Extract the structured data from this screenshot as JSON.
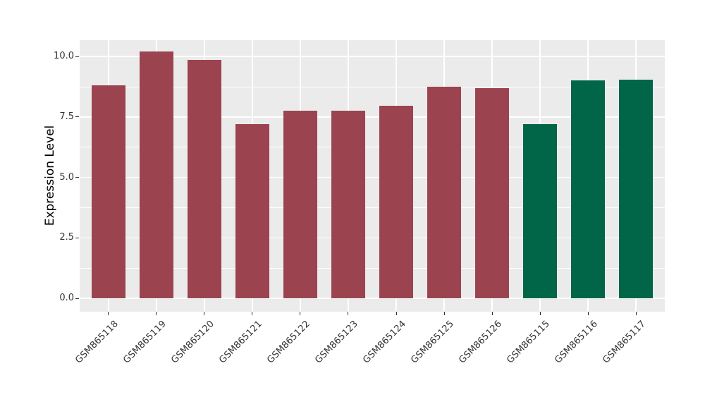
{
  "figure": {
    "y_axis_title": "Expression Level"
  },
  "chart_data": {
    "type": "bar",
    "title": "",
    "xlabel": "",
    "ylabel": "Expression Level",
    "categories": [
      "GSM865118",
      "GSM865119",
      "GSM865120",
      "GSM865121",
      "GSM865122",
      "GSM865123",
      "GSM865124",
      "GSM865125",
      "GSM865126",
      "GSM865115",
      "GSM865116",
      "GSM865117"
    ],
    "values": [
      8.8,
      10.2,
      9.85,
      7.2,
      7.75,
      7.75,
      7.95,
      8.75,
      8.7,
      7.2,
      9.0,
      9.05
    ],
    "bar_colors": [
      "#9B4450",
      "#9B4450",
      "#9B4450",
      "#9B4450",
      "#9B4450",
      "#9B4450",
      "#9B4450",
      "#9B4450",
      "#9B4450",
      "#006647",
      "#006647",
      "#006647"
    ],
    "ylim": [
      -0.55,
      10.68
    ],
    "yticks": [
      0,
      2.5,
      5,
      7.5,
      10
    ],
    "ytick_labels": [
      "0.0",
      "2.5",
      "5.0",
      "7.5",
      "10.0"
    ],
    "yticks_minor": [
      1.25,
      3.75,
      6.25,
      8.75
    ],
    "x_tick_rotation_deg": 45,
    "legend": "none",
    "grid": true,
    "colors": {
      "panel_bg": "#EBEBEB",
      "grid": "#FFFFFF",
      "axis_text": "#333333",
      "axis_title": "#000000",
      "tick_mark": "#333333",
      "bar_red": "#9B4450",
      "bar_green": "#006647"
    }
  }
}
